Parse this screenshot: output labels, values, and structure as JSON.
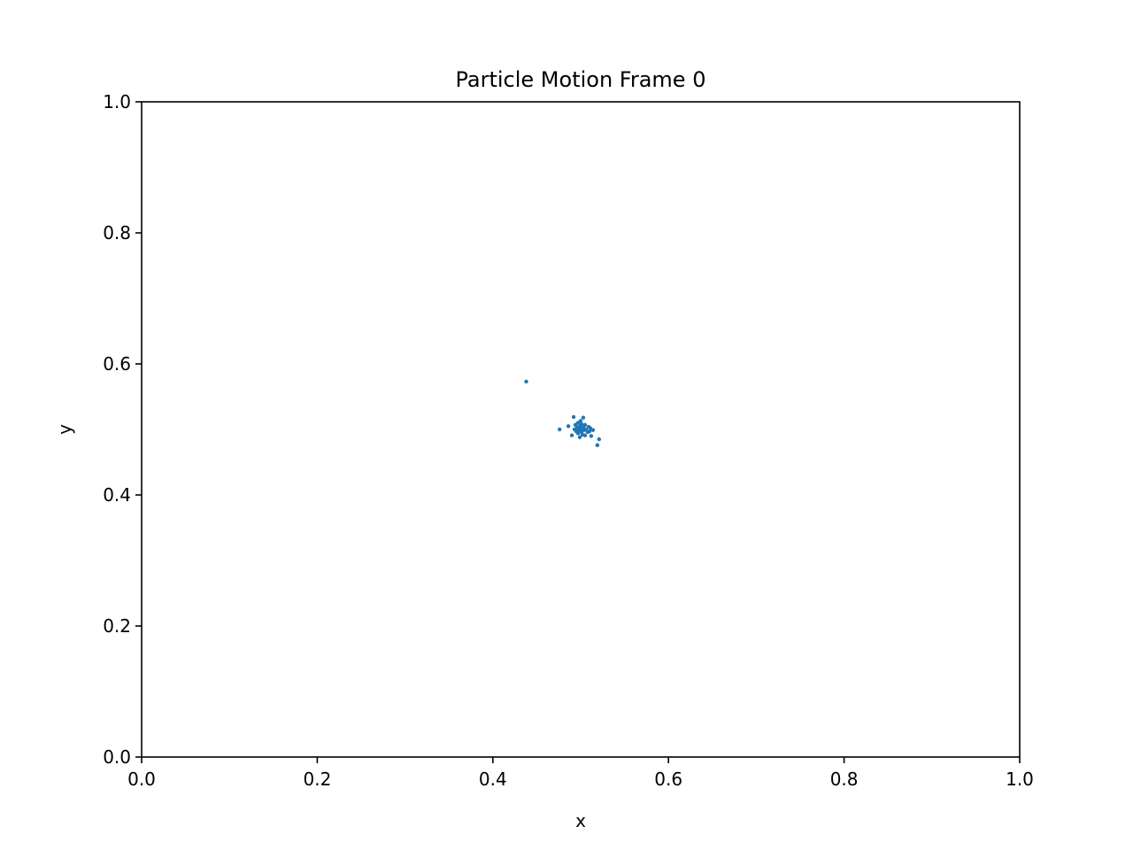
{
  "chart_data": {
    "type": "scatter",
    "title": "Particle Motion Frame 0",
    "xlabel": "x",
    "ylabel": "y",
    "xlim": [
      0.0,
      1.0
    ],
    "ylim": [
      0.0,
      1.0
    ],
    "xticks": [
      "0.0",
      "0.2",
      "0.4",
      "0.6",
      "0.8",
      "1.0"
    ],
    "yticks": [
      "0.0",
      "0.2",
      "0.4",
      "0.6",
      "0.8",
      "1.0"
    ],
    "grid": false,
    "marker_color": "#1f77b4",
    "series": [
      {
        "points": [
          [
            0.438,
            0.573
          ],
          [
            0.476,
            0.5
          ],
          [
            0.486,
            0.505
          ],
          [
            0.49,
            0.491
          ],
          [
            0.492,
            0.519
          ],
          [
            0.493,
            0.5
          ],
          [
            0.494,
            0.507
          ],
          [
            0.495,
            0.497
          ],
          [
            0.496,
            0.503
          ],
          [
            0.497,
            0.51
          ],
          [
            0.497,
            0.494
          ],
          [
            0.498,
            0.499
          ],
          [
            0.499,
            0.505
          ],
          [
            0.499,
            0.488
          ],
          [
            0.5,
            0.513
          ],
          [
            0.5,
            0.501
          ],
          [
            0.501,
            0.496
          ],
          [
            0.501,
            0.508
          ],
          [
            0.502,
            0.492
          ],
          [
            0.503,
            0.503
          ],
          [
            0.503,
            0.518
          ],
          [
            0.504,
            0.499
          ],
          [
            0.505,
            0.507
          ],
          [
            0.505,
            0.491
          ],
          [
            0.506,
            0.5
          ],
          [
            0.508,
            0.496
          ],
          [
            0.509,
            0.504
          ],
          [
            0.51,
            0.497
          ],
          [
            0.511,
            0.502
          ],
          [
            0.512,
            0.49
          ],
          [
            0.514,
            0.499
          ],
          [
            0.519,
            0.476
          ],
          [
            0.521,
            0.485
          ]
        ]
      }
    ]
  }
}
